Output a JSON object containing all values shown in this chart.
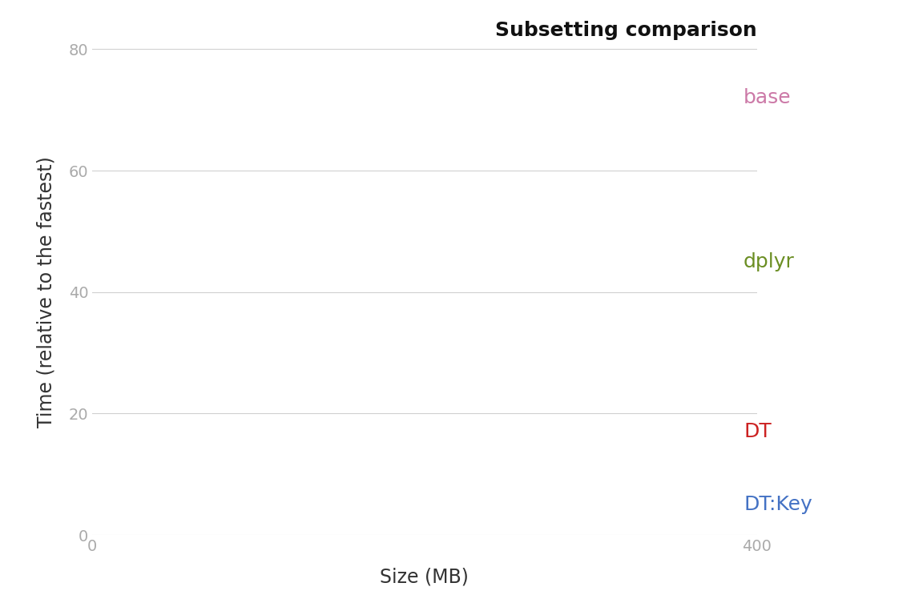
{
  "title": "Subsetting comparison",
  "xlabel": "Size (MB)",
  "ylabel": "Time (relative to the fastest)",
  "xlim": [
    0,
    400
  ],
  "ylim": [
    0,
    80
  ],
  "yticks": [
    0,
    20,
    40,
    60,
    80
  ],
  "xticks": [
    0,
    400
  ],
  "background_color": "#ffffff",
  "grid_color": "#d0d0d0",
  "labels": [
    {
      "text": "base",
      "y": 72,
      "color": "#CC79A7",
      "fontsize": 18
    },
    {
      "text": "dplyr",
      "y": 45,
      "color": "#6B8E23",
      "fontsize": 18
    },
    {
      "text": "DT",
      "y": 17,
      "color": "#CC2222",
      "fontsize": 18
    },
    {
      "text": "DT:Key",
      "y": 5,
      "color": "#4472C4",
      "fontsize": 18
    }
  ],
  "title_fontsize": 18,
  "axis_label_fontsize": 17,
  "tick_fontsize": 14,
  "tick_color": "#aaaaaa",
  "axis_label_color": "#333333"
}
